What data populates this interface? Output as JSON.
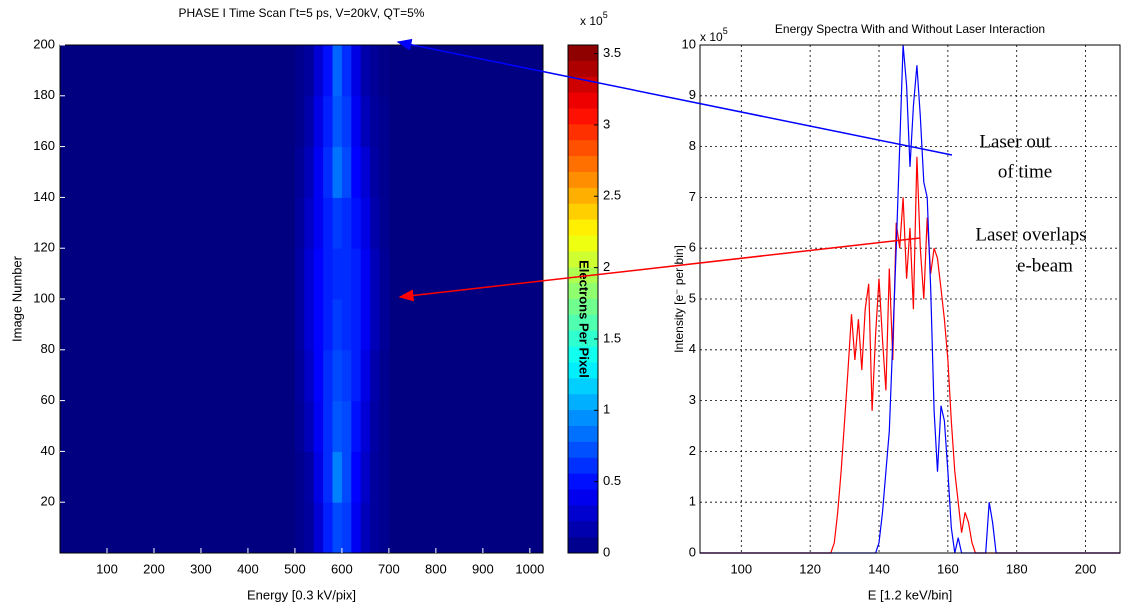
{
  "chart_data": [
    {
      "type": "heatmap",
      "title": "PHASE I Time Scan Γt=5 ps, V=20kV, QT=5%",
      "xlabel": "Energy [0.3 kV/pix]",
      "ylabel": "Image Number",
      "xlim": [
        0,
        1028
      ],
      "ylim": [
        0,
        200
      ],
      "xticks": [
        100,
        200,
        300,
        400,
        500,
        600,
        700,
        800,
        900,
        1000
      ],
      "yticks": [
        20,
        40,
        60,
        80,
        100,
        120,
        140,
        160,
        180,
        200
      ],
      "x_bins": [
        500,
        520,
        540,
        560,
        580,
        600,
        620,
        640,
        660,
        680,
        700
      ],
      "y_bins": [
        0,
        20,
        40,
        60,
        80,
        100,
        120,
        140,
        160,
        180,
        200
      ],
      "z": [
        [
          0.05,
          0.1,
          0.3,
          0.55,
          0.7,
          0.65,
          0.4,
          0.2,
          0.1,
          0.05
        ],
        [
          0.05,
          0.12,
          0.35,
          0.6,
          0.9,
          0.7,
          0.45,
          0.25,
          0.1,
          0.05
        ],
        [
          0.08,
          0.2,
          0.4,
          0.6,
          0.75,
          0.7,
          0.5,
          0.3,
          0.12,
          0.05
        ],
        [
          0.1,
          0.25,
          0.45,
          0.6,
          0.7,
          0.65,
          0.55,
          0.35,
          0.15,
          0.05
        ],
        [
          0.12,
          0.3,
          0.45,
          0.55,
          0.65,
          0.6,
          0.55,
          0.4,
          0.2,
          0.08
        ],
        [
          0.12,
          0.3,
          0.45,
          0.55,
          0.6,
          0.6,
          0.55,
          0.4,
          0.2,
          0.08
        ],
        [
          0.1,
          0.25,
          0.4,
          0.55,
          0.65,
          0.6,
          0.5,
          0.35,
          0.15,
          0.06
        ],
        [
          0.08,
          0.2,
          0.4,
          0.6,
          0.85,
          0.7,
          0.45,
          0.3,
          0.12,
          0.05
        ],
        [
          0.05,
          0.15,
          0.35,
          0.55,
          0.75,
          0.65,
          0.4,
          0.2,
          0.1,
          0.05
        ],
        [
          0.05,
          0.1,
          0.3,
          0.5,
          0.8,
          0.6,
          0.35,
          0.15,
          0.08,
          0.03
        ]
      ],
      "colorbar": {
        "label": "Electrons Per Pixel",
        "lim": [
          0,
          3.56
        ],
        "ticks": [
          0,
          0.5,
          1,
          1.5,
          2,
          2.5,
          3,
          3.5
        ],
        "scale_base": "x 10",
        "scale_power": "5"
      }
    },
    {
      "type": "line",
      "title": "Energy Spectra With and Without Laser Interaction",
      "xlabel": "E [1.2 keV/bin]",
      "ylabel": "Intensity [e⁻ per bin]",
      "scale_base": "x 10",
      "scale_power": "5",
      "xlim": [
        88,
        210
      ],
      "ylim": [
        0,
        10
      ],
      "xticks": [
        100,
        120,
        140,
        160,
        180,
        200
      ],
      "yticks": [
        0,
        1,
        2,
        3,
        4,
        5,
        6,
        7,
        8,
        9,
        10
      ],
      "grid": true,
      "x": [
        88,
        126,
        127,
        128,
        129,
        130,
        131,
        132,
        133,
        134,
        135,
        136,
        137,
        138,
        139,
        140,
        141,
        142,
        143,
        144,
        145,
        146,
        147,
        148,
        149,
        150,
        151,
        152,
        153,
        154,
        155,
        156,
        157,
        158,
        159,
        160,
        161,
        162,
        163,
        164,
        165,
        166,
        167,
        168,
        169,
        170,
        171,
        172,
        173,
        174,
        175,
        210
      ],
      "series": [
        {
          "color": "#ff0000",
          "values": [
            0,
            0,
            0.2,
            0.8,
            1.6,
            2.6,
            3.6,
            4.7,
            3.8,
            4.6,
            3.6,
            4.8,
            5.3,
            2.8,
            4.3,
            5.4,
            4.2,
            3.2,
            5.6,
            3.8,
            6.5,
            6.0,
            7.0,
            5.4,
            6.4,
            4.8,
            7.8,
            6.0,
            5.0,
            6.6,
            5.5,
            6.0,
            5.8,
            5.2,
            4.6,
            3.8,
            2.6,
            1.6,
            1.0,
            0.4,
            0.8,
            0.6,
            0.2,
            0,
            0,
            0,
            0,
            0,
            0,
            0,
            0,
            0
          ]
        },
        {
          "color": "#0000ff",
          "values": [
            0,
            0,
            0,
            0,
            0,
            0,
            0,
            0,
            0,
            0,
            0,
            0,
            0,
            0,
            0,
            0.2,
            0.8,
            1.6,
            2.4,
            4.2,
            6.0,
            8.0,
            10,
            9.2,
            7.6,
            8.8,
            9.6,
            8.6,
            7.3,
            7.0,
            5.2,
            2.8,
            1.6,
            2.9,
            2.6,
            1.6,
            0.5,
            0,
            0.3,
            0,
            0,
            0,
            0,
            0,
            0,
            0,
            0,
            1.0,
            0.6,
            0,
            0,
            0
          ]
        }
      ],
      "annotations": [
        {
          "lines": [
            "Laser out",
            "of time"
          ],
          "color": "#0000ff"
        },
        {
          "lines": [
            "Laser overlaps",
            "e-beam"
          ],
          "color": "#ff0000"
        }
      ]
    }
  ]
}
